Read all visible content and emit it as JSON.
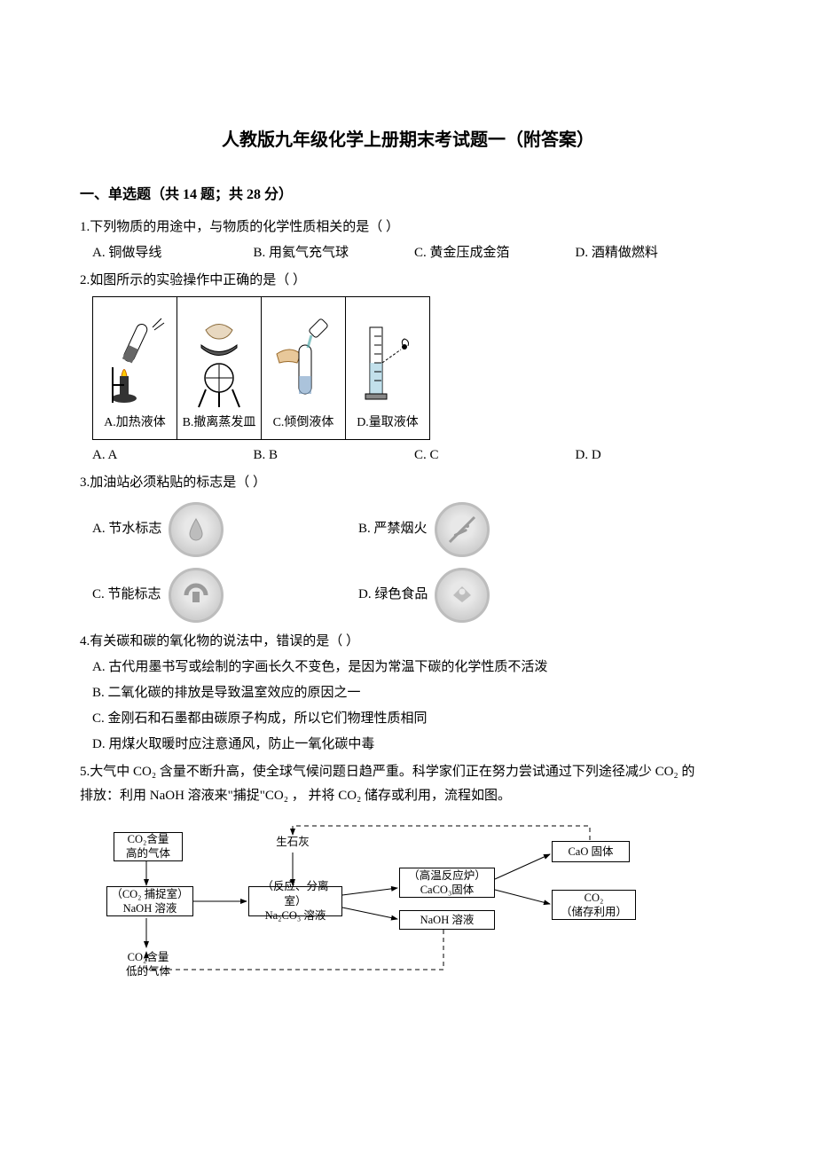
{
  "title": "人教版九年级化学上册期末考试题一（附答案）",
  "section1": {
    "heading": "一、单选题（共 14 题；共 28 分）",
    "q1": {
      "stem": "1.下列物质的用途中，与物质的化学性质相关的是（  ）",
      "opts": {
        "A": "A. 铜做导线",
        "B": "B. 用氦气充气球",
        "C": "C. 黄金压成金箔",
        "D": "D. 酒精做燃料"
      }
    },
    "q2": {
      "stem": "2.如图所示的实验操作中正确的是（   ）",
      "cells": {
        "A": "A.加热液体",
        "B": "B.撤离蒸发皿",
        "C": "C.倾倒液体",
        "D": "D.量取液体"
      },
      "opts": {
        "A": "A. A",
        "B": "B. B",
        "C": "C. C",
        "D": "D. D"
      }
    },
    "q3": {
      "stem": "3.加油站必须粘贴的标志是（   ）",
      "opts": {
        "A": "A. 节水标志",
        "B": "B. 严禁烟火",
        "C": "C. 节能标志",
        "D": "D. 绿色食品"
      }
    },
    "q4": {
      "stem": "4.有关碳和碳的氧化物的说法中，错误的是（   ）",
      "opts": {
        "A": "A. 古代用墨书写或绘制的字画长久不变色，是因为常温下碳的化学性质不活泼",
        "B": "B. 二氧化碳的排放是导致温室效应的原因之一",
        "C": "C. 金刚石和石墨都由碳原子构成，所以它们物理性质相同",
        "D": "D. 用煤火取暖时应注意通风，防止一氧化碳中毒"
      }
    },
    "q5": {
      "stem_l1": "5.大气中 CO₂ 含量不断升高，使全球气候问题日趋严重。科学家们正在努力尝试通过下列途径减少 CO₂ 的",
      "stem_l2": "排放：利用 NaOH 溶液来\"捕捉\"CO₂   ，  并将 CO₂ 储存或利用，流程如图。",
      "boxes": {
        "co2high": "CO₂含量\n高的气体",
        "capture": "（CO₂ 捕捉室）\nNaOH 溶液",
        "co2low": "CO₂含量\n低的气体",
        "quicklime": "生石灰",
        "sep": "（反应、分离室）\nNa₂CO₃ 溶液",
        "furnace": "（高温反应炉）\nCaCO₃固体",
        "naoh": "NaOH 溶液",
        "cao": "CaO 固体",
        "co2store": "CO₂\n（储存利用）"
      }
    }
  }
}
